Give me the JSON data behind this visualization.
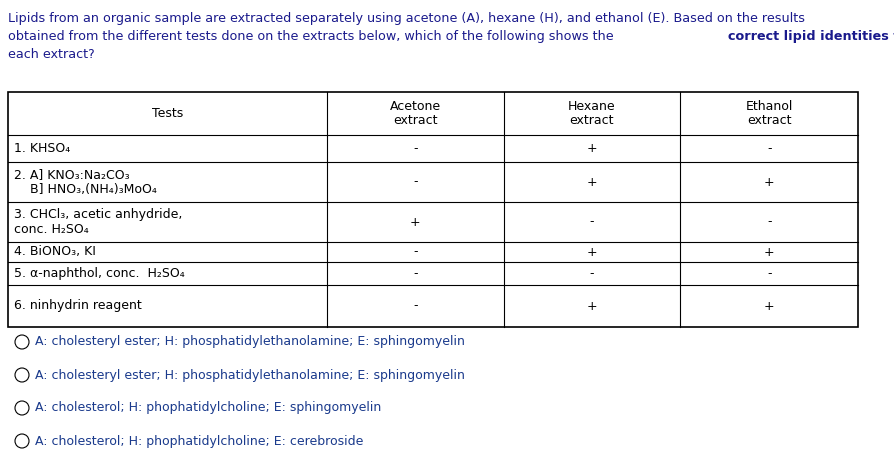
{
  "title_line1": "Lipids from an organic sample are extracted separately using acetone (A), hexane (H), and ethanol (E). Based on the results",
  "title_line2_pre": "obtained from the different tests done on the extracts below, which of the following shows the ",
  "title_line2_bold": "correct lipid identities found on",
  "title_line3": "each extract?",
  "title_color": "#1a1a8c",
  "col_headers": [
    "Tests",
    "Acetone\nextract",
    "Hexane\nextract",
    "Ethanol\nextract"
  ],
  "rows": [
    [
      "1. KHSO₄",
      "-",
      "+",
      "-"
    ],
    [
      "2. A] KNO₃:Na₂CO₃\n    B] HNO₃,(NH₄)₃MoO₄",
      "-",
      "+",
      "+"
    ],
    [
      "3. CHCl₃, acetic anhydride,\nconc. H₂SO₄",
      "+",
      "-",
      "-"
    ],
    [
      "4. BiONO₃, KI",
      "-",
      "+",
      "+"
    ],
    [
      "5. α-naphthol, conc.  H₂SO₄",
      "-",
      "-",
      "-"
    ],
    [
      "6. ninhydrin reagent",
      "-",
      "+",
      "+"
    ]
  ],
  "options": [
    "A: cholesteryl ester; H: phosphatidylethanolamine; E: sphingomyelin",
    "A: cholesteryl ester; H: phosphatidylethanolamine; E: sphingomyelin",
    "A: cholesterol; H: phophatidylcholine; E: sphingomyelin",
    "A: cholesterol; H: phophatidylcholine; E: cerebroside"
  ],
  "option_color": "#1a3a8c",
  "bg_color": "#ffffff",
  "font_size_title": 9.2,
  "font_size_table": 9.0,
  "font_size_options": 9.0,
  "table_font": "DejaVu Sans",
  "title_font": "DejaVu Sans"
}
